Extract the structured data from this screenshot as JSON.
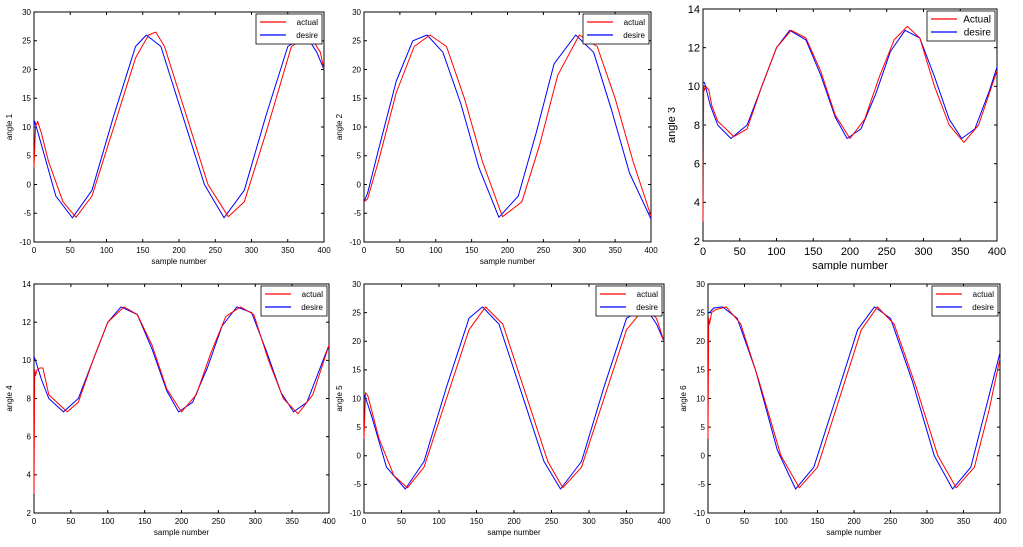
{
  "colors": {
    "actual": "#ff0000",
    "desire": "#0000ff",
    "frame": "#000000"
  },
  "chart_data": [
    {
      "type": "line",
      "ylabel": "angle 1",
      "xlabel": "sample number",
      "xlim": [
        0,
        400
      ],
      "ylim": [
        -10,
        30
      ],
      "xticks": [
        "0",
        "50",
        "100",
        "150",
        "200",
        "250",
        "300",
        "350",
        "400"
      ],
      "yticks": [
        "-10",
        "-5",
        "0",
        "5",
        "10",
        "15",
        "20",
        "25",
        "30"
      ],
      "legend": [
        "actual",
        "desire"
      ],
      "legend_position": "top-right",
      "grid": false,
      "series": [
        {
          "name": "actual",
          "x": [
            0,
            2,
            5,
            10,
            20,
            40,
            58,
            80,
            110,
            140,
            158,
            168,
            180,
            210,
            240,
            268,
            290,
            320,
            355,
            380,
            395,
            400
          ],
          "y": [
            3,
            10,
            11,
            9,
            4,
            -3,
            -5.7,
            -2,
            10,
            22,
            26,
            26.5,
            24,
            12,
            0,
            -5.6,
            -3,
            9,
            24,
            26,
            23,
            20
          ]
        },
        {
          "name": "desire",
          "x": [
            0,
            1,
            10,
            30,
            53,
            80,
            110,
            140,
            155,
            175,
            205,
            235,
            262,
            290,
            320,
            350,
            375,
            390,
            400
          ],
          "y": [
            10,
            11,
            7,
            -2,
            -5.8,
            -1,
            12,
            24,
            26,
            24,
            12,
            0,
            -5.8,
            -1,
            12,
            24,
            26,
            23,
            20
          ]
        }
      ]
    },
    {
      "type": "line",
      "ylabel": "angle 2",
      "xlabel": "sample number",
      "xlim": [
        0,
        400
      ],
      "ylim": [
        -10,
        30
      ],
      "xticks": [
        "0",
        "50",
        "100",
        "150",
        "200",
        "250",
        "300",
        "350",
        "400"
      ],
      "yticks": [
        "-10",
        "-5",
        "0",
        "5",
        "10",
        "15",
        "20",
        "25",
        "30"
      ],
      "legend": [
        "actual",
        "desire"
      ],
      "legend_position": "top-right",
      "grid": false,
      "series": [
        {
          "name": "actual",
          "x": [
            0,
            5,
            20,
            45,
            70,
            92,
            115,
            140,
            165,
            193,
            220,
            245,
            270,
            300,
            325,
            350,
            375,
            400
          ],
          "y": [
            -3,
            -2.5,
            4,
            16,
            24,
            26,
            24,
            15,
            4,
            -5.6,
            -3,
            7,
            19,
            26,
            24,
            15,
            4,
            -5.5
          ]
        },
        {
          "name": "desire",
          "x": [
            0,
            5,
            20,
            45,
            68,
            88,
            110,
            135,
            160,
            188,
            215,
            240,
            265,
            295,
            320,
            345,
            370,
            400
          ],
          "y": [
            -3,
            -1.5,
            6,
            18,
            25,
            26,
            23,
            14,
            3,
            -5.7,
            -2,
            9,
            21,
            26,
            23,
            13,
            2,
            -6
          ]
        }
      ]
    },
    {
      "type": "line",
      "ylabel": "angle 3",
      "xlabel": "sample number",
      "xlim": [
        0,
        400
      ],
      "ylim": [
        2,
        14
      ],
      "xticks": [
        "0",
        "50",
        "100",
        "150",
        "200",
        "250",
        "300",
        "350",
        "400"
      ],
      "yticks": [
        "2",
        "4",
        "6",
        "8",
        "10",
        "12",
        "14"
      ],
      "legend": [
        "Actual",
        "desire"
      ],
      "legend_position": "top-right",
      "grid": false,
      "series": [
        {
          "name": "actual",
          "x": [
            0,
            1,
            2,
            4,
            8,
            12,
            20,
            42,
            60,
            80,
            100,
            120,
            140,
            160,
            180,
            200,
            220,
            240,
            260,
            278,
            295,
            315,
            335,
            355,
            375,
            400
          ],
          "y": [
            3,
            10,
            9.8,
            10,
            9.8,
            9,
            8.2,
            7.4,
            7.8,
            10,
            12,
            12.9,
            12.5,
            10.8,
            8.5,
            7.3,
            8.3,
            10.5,
            12.4,
            13.1,
            12.5,
            10,
            8,
            7.1,
            8,
            10.8
          ]
        },
        {
          "name": "desire",
          "x": [
            0,
            2,
            10,
            20,
            38,
            60,
            80,
            100,
            118,
            140,
            160,
            180,
            196,
            215,
            235,
            255,
            275,
            295,
            315,
            335,
            352,
            370,
            390,
            400
          ],
          "y": [
            10.2,
            10.2,
            9,
            8,
            7.3,
            8,
            10,
            12,
            12.9,
            12.4,
            10.6,
            8.4,
            7.3,
            7.8,
            9.6,
            11.8,
            12.9,
            12.5,
            10.5,
            8.3,
            7.3,
            7.8,
            9.8,
            11
          ]
        }
      ]
    },
    {
      "type": "line",
      "ylabel": "angle 4",
      "xlabel": "sample number",
      "xlim": [
        0,
        400
      ],
      "ylim": [
        2,
        14
      ],
      "xticks": [
        "0",
        "50",
        "100",
        "150",
        "200",
        "250",
        "300",
        "350",
        "400"
      ],
      "yticks": [
        "2",
        "4",
        "6",
        "8",
        "10",
        "12",
        "14"
      ],
      "legend": [
        "actual",
        "desire"
      ],
      "legend_position": "top-right",
      "grid": false,
      "series": [
        {
          "name": "actual",
          "x": [
            0,
            1,
            2,
            4,
            8,
            12,
            20,
            45,
            60,
            80,
            100,
            122,
            140,
            160,
            180,
            200,
            220,
            240,
            260,
            280,
            298,
            318,
            338,
            358,
            378,
            400
          ],
          "y": [
            3,
            9.5,
            9.2,
            9.5,
            9.6,
            9.6,
            8.2,
            7.3,
            7.8,
            10,
            12,
            12.8,
            12.4,
            10.8,
            8.5,
            7.3,
            8.2,
            10.4,
            12.3,
            12.8,
            12.4,
            10,
            8,
            7.2,
            8.2,
            10.8
          ]
        },
        {
          "name": "desire",
          "x": [
            0,
            2,
            10,
            20,
            40,
            60,
            80,
            100,
            118,
            140,
            160,
            180,
            196,
            215,
            235,
            255,
            275,
            295,
            315,
            335,
            352,
            370,
            390,
            400
          ],
          "y": [
            10.2,
            10,
            9,
            8,
            7.3,
            8,
            10,
            12,
            12.8,
            12.4,
            10.6,
            8.4,
            7.3,
            7.8,
            9.6,
            11.8,
            12.8,
            12.5,
            10.5,
            8.3,
            7.3,
            7.8,
            9.8,
            10.8
          ]
        }
      ]
    },
    {
      "type": "line",
      "ylabel": "angle 5",
      "xlabel": "sampe number",
      "xlim": [
        0,
        400
      ],
      "ylim": [
        -10,
        30
      ],
      "xticks": [
        "0",
        "50",
        "100",
        "150",
        "200",
        "250",
        "300",
        "350",
        "400"
      ],
      "yticks": [
        "-10",
        "-5",
        "0",
        "5",
        "10",
        "15",
        "20",
        "25",
        "30"
      ],
      "legend": [
        "actual",
        "desire"
      ],
      "legend_position": "top-right",
      "grid": false,
      "series": [
        {
          "name": "actual",
          "x": [
            0,
            2,
            5,
            10,
            20,
            40,
            58,
            80,
            110,
            140,
            162,
            185,
            215,
            245,
            265,
            290,
            320,
            350,
            375,
            390,
            400
          ],
          "y": [
            3,
            11,
            10.5,
            8,
            3,
            -3.5,
            -5.6,
            -2,
            10,
            22,
            26,
            23,
            11,
            -1,
            -5.6,
            -2,
            10,
            22,
            26,
            24,
            20
          ]
        },
        {
          "name": "desire",
          "x": [
            0,
            1,
            10,
            30,
            55,
            80,
            110,
            140,
            158,
            180,
            210,
            240,
            262,
            290,
            320,
            350,
            375,
            390,
            400
          ],
          "y": [
            10,
            10.5,
            7,
            -2,
            -5.8,
            -1,
            12,
            24,
            26,
            23,
            11,
            -1,
            -5.8,
            -1,
            12,
            24,
            26,
            23,
            20
          ]
        }
      ]
    },
    {
      "type": "line",
      "ylabel": "angle 6",
      "xlabel": "sample number",
      "xlim": [
        0,
        400
      ],
      "ylim": [
        -10,
        30
      ],
      "xticks": [
        "0",
        "50",
        "100",
        "150",
        "200",
        "250",
        "300",
        "350",
        "400"
      ],
      "yticks": [
        "-10",
        "-5",
        "0",
        "5",
        "10",
        "15",
        "20",
        "25",
        "30"
      ],
      "legend": [
        "actual",
        "desire"
      ],
      "legend_position": "top-right",
      "grid": false,
      "series": [
        {
          "name": "actual",
          "x": [
            0,
            1,
            2,
            5,
            10,
            25,
            45,
            70,
            100,
            125,
            150,
            180,
            210,
            232,
            255,
            285,
            315,
            340,
            365,
            385,
            400
          ],
          "y": [
            3,
            24,
            23,
            25,
            25.5,
            26,
            23,
            13,
            0,
            -5.6,
            -2,
            10,
            22,
            26,
            23,
            12,
            0,
            -5.6,
            -2,
            8,
            17
          ]
        },
        {
          "name": "desire",
          "x": [
            0,
            2,
            8,
            20,
            40,
            65,
            95,
            120,
            145,
            175,
            205,
            228,
            250,
            280,
            310,
            335,
            360,
            380,
            400
          ],
          "y": [
            25,
            25,
            25.8,
            26,
            24,
            15,
            1,
            -5.8,
            -2,
            10,
            22,
            26,
            24,
            13,
            0,
            -5.8,
            -2,
            8,
            18
          ]
        }
      ]
    }
  ]
}
